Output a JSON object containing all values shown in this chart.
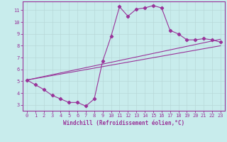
{
  "background_color": "#c8ecec",
  "grid_color": "#b8d8d8",
  "line_color": "#993399",
  "spine_color": "#993399",
  "xlabel": "Windchill (Refroidissement éolien,°C)",
  "hours": [
    0,
    1,
    2,
    3,
    4,
    5,
    6,
    7,
    8,
    9,
    10,
    11,
    12,
    13,
    14,
    15,
    16,
    17,
    18,
    19,
    20,
    21,
    22,
    23
  ],
  "main_values": [
    5.1,
    4.7,
    4.3,
    3.8,
    3.5,
    3.2,
    3.2,
    2.9,
    3.5,
    6.7,
    8.8,
    11.3,
    10.5,
    11.1,
    11.2,
    11.4,
    11.2,
    9.3,
    9.0,
    8.5,
    8.5,
    8.6,
    8.5,
    8.3
  ],
  "lower_band_y0": 5.1,
  "lower_band_y1": 8.0,
  "upper_band_y0": 5.1,
  "upper_band_y1": 8.55,
  "xlim": [
    -0.5,
    23.5
  ],
  "ylim": [
    2.5,
    11.75
  ],
  "yticks": [
    3,
    4,
    5,
    6,
    7,
    8,
    9,
    10,
    11
  ],
  "xticks": [
    0,
    1,
    2,
    3,
    4,
    5,
    6,
    7,
    8,
    9,
    10,
    11,
    12,
    13,
    14,
    15,
    16,
    17,
    18,
    19,
    20,
    21,
    22,
    23
  ],
  "tick_fontsize": 5.0,
  "xlabel_fontsize": 5.5,
  "linewidth": 0.8,
  "marker_size": 2.2
}
